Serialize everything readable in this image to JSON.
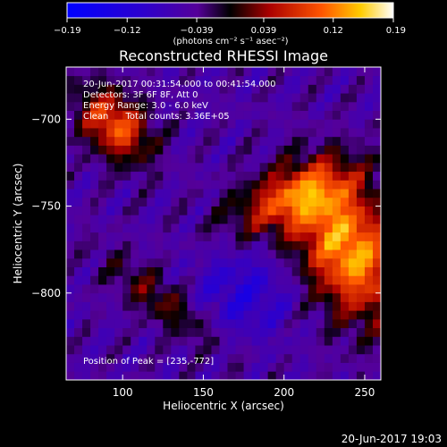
{
  "chart_data": {
    "type": "heatmap",
    "title": "Reconstructed RHESSI Image",
    "xlabel": "Heliocentric X (arcsec)",
    "ylabel": "Heliocentric Y (arcsec)",
    "xlim": [
      65,
      260
    ],
    "ylim": [
      -850,
      -670
    ],
    "x_ticks": [
      100,
      150,
      200,
      250
    ],
    "y_ticks": [
      -700,
      -750,
      -800
    ],
    "colorbar": {
      "min": -0.19,
      "max": 0.19,
      "ticks": [
        -0.19,
        -0.12,
        -0.039,
        0.039,
        0.12,
        0.19
      ],
      "tick_labels": [
        "-0.19",
        "-0.12",
        "-0.039",
        "0.039",
        "0.12",
        "0.19"
      ],
      "unit_label": "(photons cm⁻² s⁻¹ asec⁻²)"
    },
    "annotations": {
      "time_range": "20-Jun-2017 00:31:54.000 to 00:41:54.000",
      "detectors": "Detectors: 3F 6F 8F, Att 0",
      "energy": "Energy Range: 3.0 - 6.0 keV",
      "method": "Clean      Total counts: 3.36E+05",
      "peak": "Position of Peak = [235,-772]"
    },
    "sources": [
      {
        "x": 95,
        "y": -703,
        "amp": 0.15,
        "sx": 18,
        "sy": 12,
        "angle": -40
      },
      {
        "x": 205,
        "y": -745,
        "amp": 0.13,
        "sx": 28,
        "sy": 12,
        "angle": 20
      },
      {
        "x": 240,
        "y": -775,
        "amp": 0.19,
        "sx": 20,
        "sy": 30,
        "angle": 30
      },
      {
        "x": 125,
        "y": -805,
        "amp": 0.07,
        "sx": 30,
        "sy": 9,
        "angle": -35
      },
      {
        "x": 175,
        "y": -800,
        "amp": -0.06,
        "sx": 22,
        "sy": 18,
        "angle": 0
      }
    ],
    "peak_position": [
      235,
      -772
    ]
  },
  "footer": {
    "timestamp": "20-Jun-2017 19:03"
  },
  "colors": {
    "background": "#000000",
    "text": "#ffffff"
  }
}
